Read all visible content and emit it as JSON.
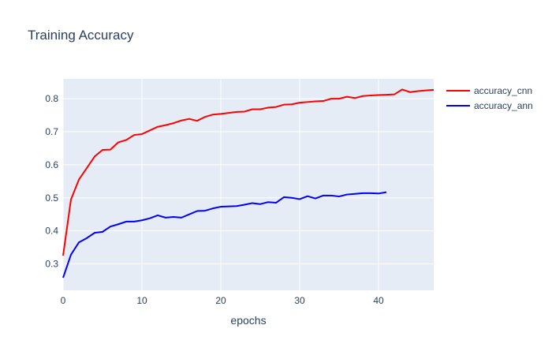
{
  "chart_data": {
    "type": "line",
    "title": "Training Accuracy",
    "xlabel": "epochs",
    "ylabel": "",
    "xlim": [
      0,
      47
    ],
    "ylim": [
      0.22,
      0.86
    ],
    "xticks": [
      0,
      10,
      20,
      30,
      40
    ],
    "yticks": [
      0.3,
      0.4,
      0.5,
      0.6,
      0.7,
      0.8
    ],
    "grid": true,
    "legend_position": "top-right",
    "background": "#e5ecf6",
    "series": [
      {
        "name": "accuracy_cnn",
        "color": "#ff0000",
        "x": [
          0,
          1,
          2,
          3,
          4,
          5,
          6,
          7,
          8,
          9,
          10,
          11,
          12,
          13,
          14,
          15,
          16,
          17,
          18,
          19,
          20,
          21,
          22,
          23,
          24,
          25,
          26,
          27,
          28,
          29,
          30,
          31,
          32,
          33,
          34,
          35,
          36,
          37,
          38,
          39,
          40,
          41,
          42,
          43,
          44,
          45,
          46,
          47
        ],
        "values": [
          0.325,
          0.495,
          0.555,
          0.59,
          0.625,
          0.645,
          0.646,
          0.668,
          0.675,
          0.69,
          0.693,
          0.704,
          0.715,
          0.72,
          0.726,
          0.734,
          0.739,
          0.733,
          0.745,
          0.752,
          0.754,
          0.757,
          0.76,
          0.761,
          0.768,
          0.768,
          0.773,
          0.775,
          0.782,
          0.783,
          0.788,
          0.79,
          0.792,
          0.793,
          0.8,
          0.8,
          0.806,
          0.802,
          0.808,
          0.81,
          0.811,
          0.812,
          0.813,
          0.828,
          0.82,
          0.823,
          0.825,
          0.827
        ]
      },
      {
        "name": "accuracy_ann",
        "color": "#0000ff",
        "x": [
          0,
          1,
          2,
          3,
          4,
          5,
          6,
          7,
          8,
          9,
          10,
          11,
          12,
          13,
          14,
          15,
          16,
          17,
          18,
          19,
          20,
          21,
          22,
          23,
          24,
          25,
          26,
          27,
          28,
          29,
          30,
          31,
          32,
          33,
          34,
          35,
          36,
          37,
          38,
          39,
          40,
          41
        ],
        "values": [
          0.258,
          0.328,
          0.365,
          0.378,
          0.394,
          0.397,
          0.413,
          0.42,
          0.428,
          0.428,
          0.432,
          0.438,
          0.447,
          0.44,
          0.442,
          0.44,
          0.45,
          0.46,
          0.461,
          0.468,
          0.473,
          0.474,
          0.475,
          0.479,
          0.484,
          0.481,
          0.487,
          0.485,
          0.502,
          0.5,
          0.496,
          0.505,
          0.498,
          0.507,
          0.507,
          0.504,
          0.51,
          0.512,
          0.514,
          0.514,
          0.513,
          0.517
        ]
      }
    ]
  }
}
